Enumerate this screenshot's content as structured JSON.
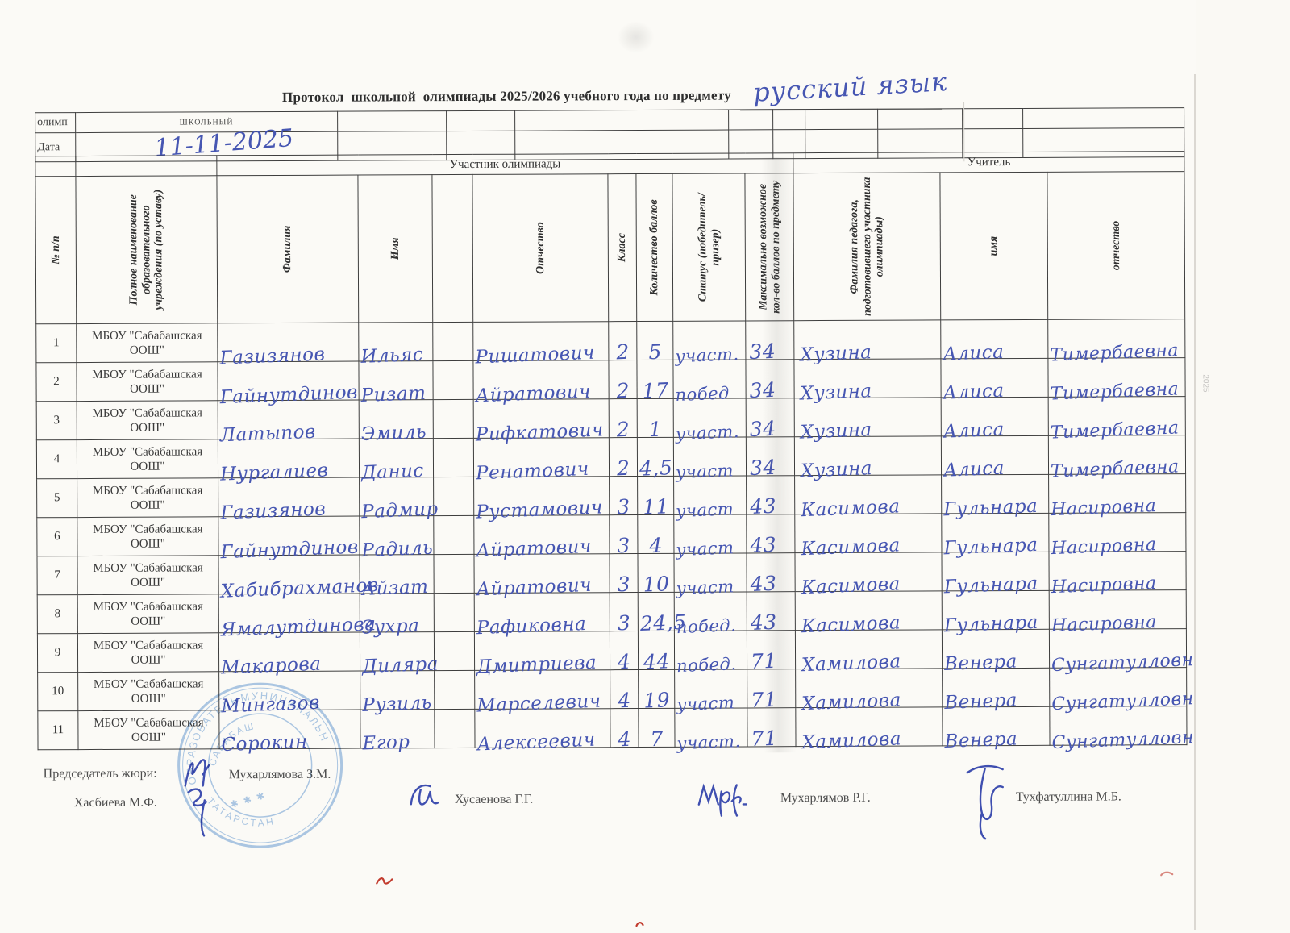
{
  "title": {
    "printed": "Протокол  школьной  олимпиады 2025/2026 учебного года по предмету",
    "subject": "русский язык"
  },
  "info": {
    "olymp_label": "олимп",
    "olymp_value": "школьный",
    "date_label": "Дата",
    "date_value": "11-11-2025"
  },
  "table": {
    "band_participant": "Участник олимпиады",
    "band_teacher": "Учитель",
    "headers": {
      "num": "№ п/п",
      "school": "Полное наименование образовательного учреждения (по уставу)",
      "surname": "Фамилия",
      "name": "Имя",
      "patronymic": "Отчество",
      "grade": "Класс",
      "score": "Количество баллов",
      "status": "Статус (победитель/призер)",
      "max": "Максимально возможное кол-во баллов  по предмету",
      "teacher": "Фамилия педагога, подготовившего участника олимпиады)",
      "teacher_name": "имя",
      "teacher_patronymic": "отчество"
    },
    "rows": [
      {
        "num": "1",
        "school": "МБОУ \"Сабабашская ООШ\"",
        "surname": "Газизянов",
        "name": "Ильяс",
        "blank": "",
        "patronymic": "Ришатович",
        "grade": "2",
        "score": "5",
        "status": "участ.",
        "max": "34",
        "t_surname": "Хузина",
        "t_name": "Алиса",
        "t_patronymic": "Тимербаевна"
      },
      {
        "num": "2",
        "school": "МБОУ \"Сабабашская ООШ\"",
        "surname": "Гайнутдинов",
        "name": "Ризат",
        "blank": "",
        "patronymic": "Айратович",
        "grade": "2",
        "score": "17",
        "status": "побед",
        "max": "34",
        "t_surname": "Хузина",
        "t_name": "Алиса",
        "t_patronymic": "Тимербаевна"
      },
      {
        "num": "3",
        "school": "МБОУ \"Сабабашская ООШ\"",
        "surname": "Латыпов",
        "name": "Эмиль",
        "blank": "",
        "patronymic": "Рифкатович",
        "grade": "2",
        "score": "1",
        "status": "участ.",
        "max": "34",
        "t_surname": "Хузина",
        "t_name": "Алиса",
        "t_patronymic": "Тимербаевна"
      },
      {
        "num": "4",
        "school": "МБОУ \"Сабабашская ООШ\"",
        "surname": "Нургалиев",
        "name": "Данис",
        "blank": "",
        "patronymic": "Ренатович",
        "grade": "2",
        "score": "4,5",
        "status": "участ",
        "max": "34",
        "t_surname": "Хузина",
        "t_name": "Алиса",
        "t_patronymic": "Тимербаевна"
      },
      {
        "num": "5",
        "school": "МБОУ \"Сабабашская ООШ\"",
        "surname": "Газизянов",
        "name": "Радмир",
        "blank": "",
        "patronymic": "Рустамович",
        "grade": "3",
        "score": "11",
        "status": "участ",
        "max": "43",
        "t_surname": "Касимова",
        "t_name": "Гульнара",
        "t_patronymic": "Насировна"
      },
      {
        "num": "6",
        "school": "МБОУ \"Сабабашская ООШ\"",
        "surname": "Гайнутдинов",
        "name": "Радиль",
        "blank": "",
        "patronymic": "Айратович",
        "grade": "3",
        "score": "4",
        "status": "участ",
        "max": "43",
        "t_surname": "Касимова",
        "t_name": "Гульнара",
        "t_patronymic": "Насировна"
      },
      {
        "num": "7",
        "school": "МБОУ \"Сабабашская ООШ\"",
        "surname": "Хабибрахманов",
        "name": "Айзат",
        "blank": "",
        "patronymic": "Айратович",
        "grade": "3",
        "score": "10",
        "status": "участ",
        "max": "43",
        "t_surname": "Касимова",
        "t_name": "Гульнара",
        "t_patronymic": "Насировна"
      },
      {
        "num": "8",
        "school": "МБОУ \"Сабабашская ООШ\"",
        "surname": "Ямалутдинова",
        "name": "Зухра",
        "blank": "",
        "patronymic": "Рафиковна",
        "grade": "3",
        "score": "24,5",
        "status": "побед.",
        "max": "43",
        "t_surname": "Касимова",
        "t_name": "Гульнара",
        "t_patronymic": "Насировна"
      },
      {
        "num": "9",
        "school": "МБОУ \"Сабабашская ООШ\"",
        "surname": "Макарова",
        "name": "Диляра",
        "blank": "",
        "patronymic": "Дмитриева",
        "grade": "4",
        "score": "44",
        "status": "побед.",
        "max": "71",
        "t_surname": "Хамилова",
        "t_name": "Венера",
        "t_patronymic": "Сунгатулловна"
      },
      {
        "num": "10",
        "school": "МБОУ \"Сабабашская ООШ\"",
        "surname": "Мингазов",
        "name": "Рузиль",
        "blank": "",
        "patronymic": "Марселевич",
        "grade": "4",
        "score": "19",
        "status": "участ",
        "max": "71",
        "t_surname": "Хамилова",
        "t_name": "Венера",
        "t_patronymic": "Сунгатулловна"
      },
      {
        "num": "11",
        "school": "МБОУ \"Сабабашская ООШ\"",
        "surname": "Сорокин",
        "name": "Егор",
        "blank": "",
        "patronymic": "Алексеевич",
        "grade": "4",
        "score": "7",
        "status": "участ.",
        "max": "71",
        "t_surname": "Хамилова",
        "t_name": "Венера",
        "t_patronymic": "Сунгатулловна"
      }
    ]
  },
  "footer": {
    "chair_label": "Председатель жюри:",
    "chair_name": "Мухарлямова З.М.",
    "member1": "Хасбиева М.Ф.",
    "member2": "Хусаенова Г.Г.",
    "member3": "Мухарлямов Р.Г.",
    "member4": "Тухфатуллина М.Б."
  },
  "stamp": {
    "ring1": "ОБРАЗОВАТЕЛЬНОГО",
    "ring2": "МУНИЦИПАЛЬНОГО",
    "inner": "САБАБАШ",
    "ring3": "ТАТАРСТАН"
  },
  "artifacts": {
    "edge_mark": "2025"
  },
  "colors": {
    "ink": "#4656b2",
    "stamp_blue": "#6f9ed2",
    "table_line": "#3e3e3e",
    "paper": "#fbfaf6",
    "speck_red": "#c23b2e"
  }
}
